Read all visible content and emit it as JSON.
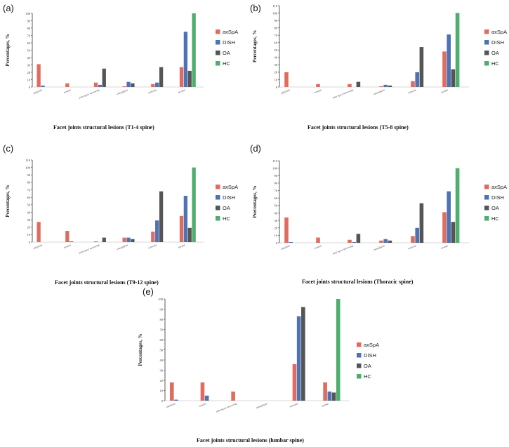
{
  "panels": [
    {
      "letter": "(a)",
      "caption": "Facet joints structural lesions (T1-4 spine)"
    },
    {
      "letter": "(b)",
      "caption": "Facet joints structural lesions (T5-8 spine)"
    },
    {
      "letter": "(c)",
      "caption": "Facet joints structural lesions (T9-12 spine)"
    },
    {
      "letter": "(d)",
      "caption": "Facet joints structural lesions (Thoracic spine)"
    },
    {
      "letter": "(e)",
      "caption": "Facet joints structural lesions (lumbar spine)"
    }
  ],
  "colors": {
    "axSpA": "#e06c60",
    "DISH": "#4e73b5",
    "OA": "#555555",
    "HC": "#4fae6e"
  },
  "chart_data": [
    {
      "type": "bar",
      "title": "Facet joints structural lesions (T1-4 spine)",
      "xlabel": "",
      "ylabel": "Percentages, %",
      "ylim": [
        0,
        100
      ],
      "yticks": [
        0,
        10,
        20,
        30,
        40,
        50,
        60,
        70,
        80,
        90,
        100
      ],
      "categories": [
        "ankylosis",
        "erosion",
        "joint space narrowing",
        "osteophytes",
        "sclerosis",
        "normal"
      ],
      "legend_position": "right",
      "series": [
        {
          "name": "axSpA",
          "values": [
            31,
            5,
            6,
            1,
            4,
            27
          ]
        },
        {
          "name": "DISH",
          "values": [
            2,
            0,
            3,
            7,
            6,
            75
          ]
        },
        {
          "name": "OA",
          "values": [
            0,
            0,
            25,
            5,
            27,
            22
          ]
        },
        {
          "name": "HC",
          "values": [
            0,
            0,
            0,
            0,
            0,
            100
          ]
        }
      ]
    },
    {
      "type": "bar",
      "title": "Facet joints structural lesions (T5-8 spine)",
      "xlabel": "",
      "ylabel": "Percentages, %",
      "ylim": [
        0,
        110
      ],
      "yticks": [
        0,
        10,
        20,
        30,
        40,
        50,
        60,
        70,
        80,
        90,
        100,
        110
      ],
      "categories": [
        "ankylosis",
        "erosion",
        "joint space narrowing",
        "osteophytes",
        "sclerosis",
        "normal"
      ],
      "legend_position": "right",
      "series": [
        {
          "name": "axSpA",
          "values": [
            20,
            4,
            4,
            1,
            8,
            48
          ]
        },
        {
          "name": "DISH",
          "values": [
            0,
            0,
            0,
            3,
            20,
            71
          ]
        },
        {
          "name": "OA",
          "values": [
            0,
            0,
            7,
            2,
            54,
            24
          ]
        },
        {
          "name": "HC",
          "values": [
            0,
            0,
            0,
            0,
            0,
            100
          ]
        }
      ]
    },
    {
      "type": "bar",
      "title": "Facet joints structural lesions (T9-12 spine)",
      "xlabel": "",
      "ylabel": "Percentages, %",
      "ylim": [
        0,
        110
      ],
      "yticks": [
        0,
        10,
        20,
        30,
        40,
        50,
        60,
        70,
        80,
        90,
        100,
        110
      ],
      "categories": [
        "ankylosis",
        "erosion",
        "joint space narrowing",
        "osteophytes",
        "sclerosis",
        "normal"
      ],
      "legend_position": "right",
      "series": [
        {
          "name": "axSpA",
          "values": [
            27,
            15,
            1,
            6,
            14,
            35
          ]
        },
        {
          "name": "DISH",
          "values": [
            0,
            1,
            0,
            6,
            29,
            62
          ]
        },
        {
          "name": "OA",
          "values": [
            0,
            0,
            6,
            4,
            68,
            19
          ]
        },
        {
          "name": "HC",
          "values": [
            0,
            0,
            0,
            0,
            0,
            100
          ]
        }
      ]
    },
    {
      "type": "bar",
      "title": "Facet joints structural lesions (Thoracic spine)",
      "xlabel": "",
      "ylabel": "Percentages, %",
      "ylim": [
        0,
        110
      ],
      "yticks": [
        0,
        10,
        20,
        30,
        40,
        50,
        60,
        70,
        80,
        90,
        100,
        110
      ],
      "categories": [
        "ankylosis",
        "erosion",
        "joint space narrowing",
        "osteophytes",
        "sclerosis",
        "normal"
      ],
      "legend_position": "right",
      "series": [
        {
          "name": "axSpA",
          "values": [
            34,
            7,
            4,
            3,
            9,
            41
          ]
        },
        {
          "name": "DISH",
          "values": [
            1,
            0,
            1,
            5,
            20,
            69
          ]
        },
        {
          "name": "OA",
          "values": [
            0,
            0,
            12,
            3,
            53,
            28
          ]
        },
        {
          "name": "HC",
          "values": [
            0,
            0,
            0,
            0,
            0,
            100
          ]
        }
      ]
    },
    {
      "type": "bar",
      "title": "Facet joints structural lesions (lumbar spine)",
      "xlabel": "",
      "ylabel": "Percentages, %",
      "ylim": [
        0,
        100
      ],
      "yticks": [
        0,
        10,
        20,
        30,
        40,
        50,
        60,
        70,
        80,
        90,
        100
      ],
      "categories": [
        "ankylosis",
        "erosion",
        "joint space narrowing",
        "osteophytes",
        "sclerosis",
        "normal"
      ],
      "legend_position": "right",
      "series": [
        {
          "name": "axSpA",
          "values": [
            18,
            18,
            9,
            0,
            36,
            18
          ]
        },
        {
          "name": "DISH",
          "values": [
            1,
            5,
            0,
            0,
            83,
            9
          ]
        },
        {
          "name": "OA",
          "values": [
            0,
            0,
            0,
            0,
            92,
            8
          ]
        },
        {
          "name": "HC",
          "values": [
            0,
            0,
            0,
            0,
            0,
            100
          ]
        }
      ]
    }
  ]
}
